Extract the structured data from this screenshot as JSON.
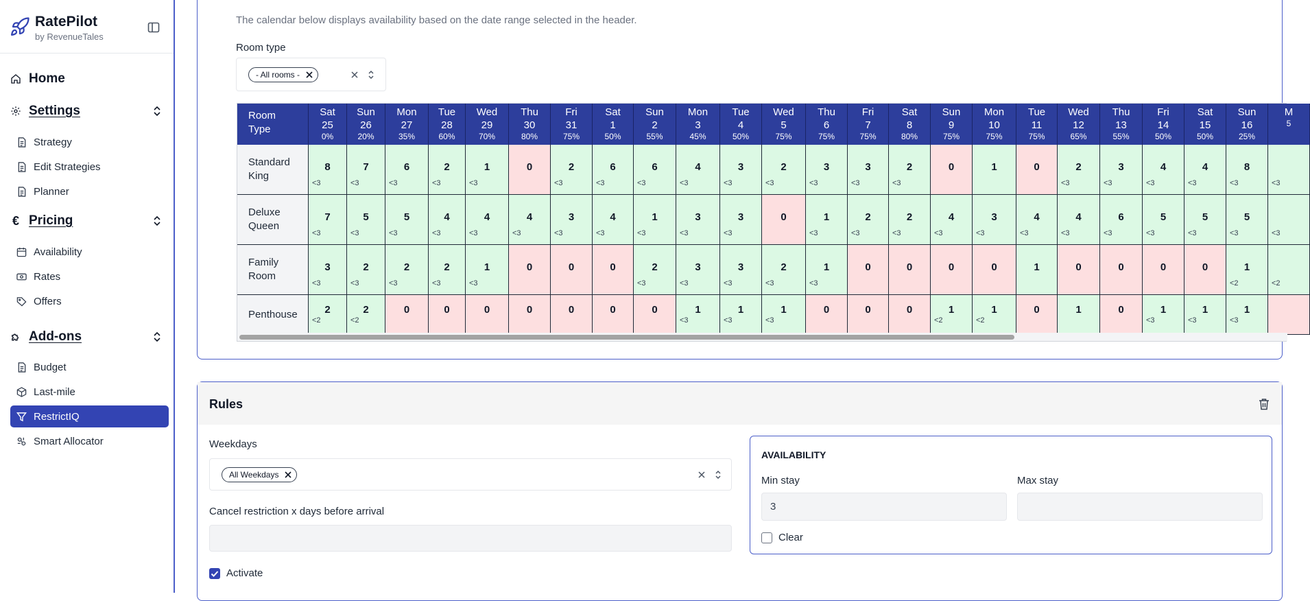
{
  "brand": {
    "name": "RatePilot",
    "sub": "by RevenueTales"
  },
  "nav": {
    "home": "Home",
    "settings": {
      "label": "Settings",
      "items": [
        "Strategy",
        "Edit Strategies",
        "Planner"
      ]
    },
    "pricing": {
      "label": "Pricing",
      "items": [
        "Availability",
        "Rates",
        "Offers"
      ]
    },
    "addons": {
      "label": "Add-ons",
      "items": [
        "Budget",
        "Last-mile",
        "RestrictIQ",
        "Smart Allocator"
      ]
    }
  },
  "calendar": {
    "description": "The calendar below displays availability based on the date range selected in the header.",
    "room_type_label": "Room type",
    "room_type_tag": "- All rooms -",
    "first_header": [
      "Room",
      "Type"
    ],
    "days": [
      {
        "d": "Sat",
        "n": "25",
        "p": "0%"
      },
      {
        "d": "Sun",
        "n": "26",
        "p": "20%"
      },
      {
        "d": "Mon",
        "n": "27",
        "p": "35%"
      },
      {
        "d": "Tue",
        "n": "28",
        "p": "60%"
      },
      {
        "d": "Wed",
        "n": "29",
        "p": "70%"
      },
      {
        "d": "Thu",
        "n": "30",
        "p": "80%"
      },
      {
        "d": "Fri",
        "n": "31",
        "p": "75%"
      },
      {
        "d": "Sat",
        "n": "1",
        "p": "50%"
      },
      {
        "d": "Sun",
        "n": "2",
        "p": "55%"
      },
      {
        "d": "Mon",
        "n": "3",
        "p": "45%"
      },
      {
        "d": "Tue",
        "n": "4",
        "p": "50%"
      },
      {
        "d": "Wed",
        "n": "5",
        "p": "75%"
      },
      {
        "d": "Thu",
        "n": "6",
        "p": "75%"
      },
      {
        "d": "Fri",
        "n": "7",
        "p": "75%"
      },
      {
        "d": "Sat",
        "n": "8",
        "p": "80%"
      },
      {
        "d": "Sun",
        "n": "9",
        "p": "75%"
      },
      {
        "d": "Mon",
        "n": "10",
        "p": "75%"
      },
      {
        "d": "Tue",
        "n": "11",
        "p": "75%"
      },
      {
        "d": "Wed",
        "n": "12",
        "p": "65%"
      },
      {
        "d": "Thu",
        "n": "13",
        "p": "55%"
      },
      {
        "d": "Fri",
        "n": "14",
        "p": "50%"
      },
      {
        "d": "Sat",
        "n": "15",
        "p": "50%"
      },
      {
        "d": "Sun",
        "n": "16",
        "p": "25%"
      },
      {
        "d": "M",
        "n": "",
        "p": "5"
      }
    ],
    "rows": [
      {
        "name": [
          "Standard",
          "King"
        ],
        "cells": [
          [
            "8",
            "<3"
          ],
          [
            "7",
            "<3"
          ],
          [
            "6",
            "<3"
          ],
          [
            "2",
            "<3"
          ],
          [
            "1",
            "<3"
          ],
          [
            "0",
            ""
          ],
          [
            "2",
            "<3"
          ],
          [
            "6",
            "<3"
          ],
          [
            "6",
            "<3"
          ],
          [
            "4",
            "<3"
          ],
          [
            "3",
            "<3"
          ],
          [
            "2",
            "<3"
          ],
          [
            "3",
            "<3"
          ],
          [
            "3",
            "<3"
          ],
          [
            "2",
            "<3"
          ],
          [
            "0",
            ""
          ],
          [
            "1",
            ""
          ],
          [
            "0",
            ""
          ],
          [
            "2",
            "<3"
          ],
          [
            "3",
            "<3"
          ],
          [
            "4",
            "<3"
          ],
          [
            "4",
            "<3"
          ],
          [
            "8",
            "<3"
          ],
          [
            "",
            "<3"
          ]
        ]
      },
      {
        "name": [
          "Deluxe",
          "Queen"
        ],
        "cells": [
          [
            "7",
            "<3"
          ],
          [
            "5",
            "<3"
          ],
          [
            "5",
            "<3"
          ],
          [
            "4",
            "<3"
          ],
          [
            "4",
            "<3"
          ],
          [
            "4",
            "<3"
          ],
          [
            "3",
            "<3"
          ],
          [
            "4",
            "<3"
          ],
          [
            "1",
            "<3"
          ],
          [
            "3",
            "<3"
          ],
          [
            "3",
            "<3"
          ],
          [
            "0",
            ""
          ],
          [
            "1",
            "<3"
          ],
          [
            "2",
            "<3"
          ],
          [
            "2",
            "<3"
          ],
          [
            "4",
            "<3"
          ],
          [
            "3",
            "<3"
          ],
          [
            "4",
            "<3"
          ],
          [
            "4",
            "<3"
          ],
          [
            "6",
            "<3"
          ],
          [
            "5",
            "<3"
          ],
          [
            "5",
            "<3"
          ],
          [
            "5",
            "<3"
          ],
          [
            "",
            "<3"
          ]
        ]
      },
      {
        "name": [
          "Family",
          "Room"
        ],
        "cells": [
          [
            "3",
            "<3"
          ],
          [
            "2",
            "<3"
          ],
          [
            "2",
            "<3"
          ],
          [
            "2",
            "<3"
          ],
          [
            "1",
            "<3"
          ],
          [
            "0",
            ""
          ],
          [
            "0",
            ""
          ],
          [
            "0",
            ""
          ],
          [
            "2",
            "<3"
          ],
          [
            "3",
            "<3"
          ],
          [
            "3",
            "<3"
          ],
          [
            "2",
            "<3"
          ],
          [
            "1",
            "<3"
          ],
          [
            "0",
            ""
          ],
          [
            "0",
            ""
          ],
          [
            "0",
            ""
          ],
          [
            "0",
            ""
          ],
          [
            "1",
            ""
          ],
          [
            "0",
            ""
          ],
          [
            "0",
            ""
          ],
          [
            "0",
            ""
          ],
          [
            "0",
            ""
          ],
          [
            "1",
            "<2"
          ],
          [
            "",
            "<2"
          ]
        ]
      },
      {
        "name": [
          "Penthouse"
        ],
        "cells": [
          [
            "2",
            "<2"
          ],
          [
            "2",
            "<2"
          ],
          [
            "0",
            ""
          ],
          [
            "0",
            ""
          ],
          [
            "0",
            ""
          ],
          [
            "0",
            ""
          ],
          [
            "0",
            ""
          ],
          [
            "0",
            ""
          ],
          [
            "0",
            ""
          ],
          [
            "1",
            "<3"
          ],
          [
            "1",
            "<3"
          ],
          [
            "1",
            "<3"
          ],
          [
            "0",
            ""
          ],
          [
            "0",
            ""
          ],
          [
            "0",
            ""
          ],
          [
            "1",
            "<2"
          ],
          [
            "1",
            "<2"
          ],
          [
            "0",
            ""
          ],
          [
            "1",
            ""
          ],
          [
            "0",
            ""
          ],
          [
            "1",
            "<3"
          ],
          [
            "1",
            "<3"
          ],
          [
            "1",
            "<3"
          ],
          [
            "",
            ""
          ]
        ]
      }
    ]
  },
  "rules": {
    "title": "Rules",
    "weekdays_label": "Weekdays",
    "weekdays_tag": "All Weekdays",
    "cancel_label": "Cancel restriction x days before arrival",
    "cancel_value": "",
    "activate_label": "Activate",
    "availability": {
      "title": "AVAILABILITY",
      "min_label": "Min stay",
      "min_value": "3",
      "max_label": "Max stay",
      "max_value": "",
      "clear_label": "Clear"
    }
  },
  "colors": {
    "accent": "#3344b3",
    "header": "#2d3e9c",
    "available": "#dcf9e4",
    "unavailable": "#fddfe0"
  }
}
